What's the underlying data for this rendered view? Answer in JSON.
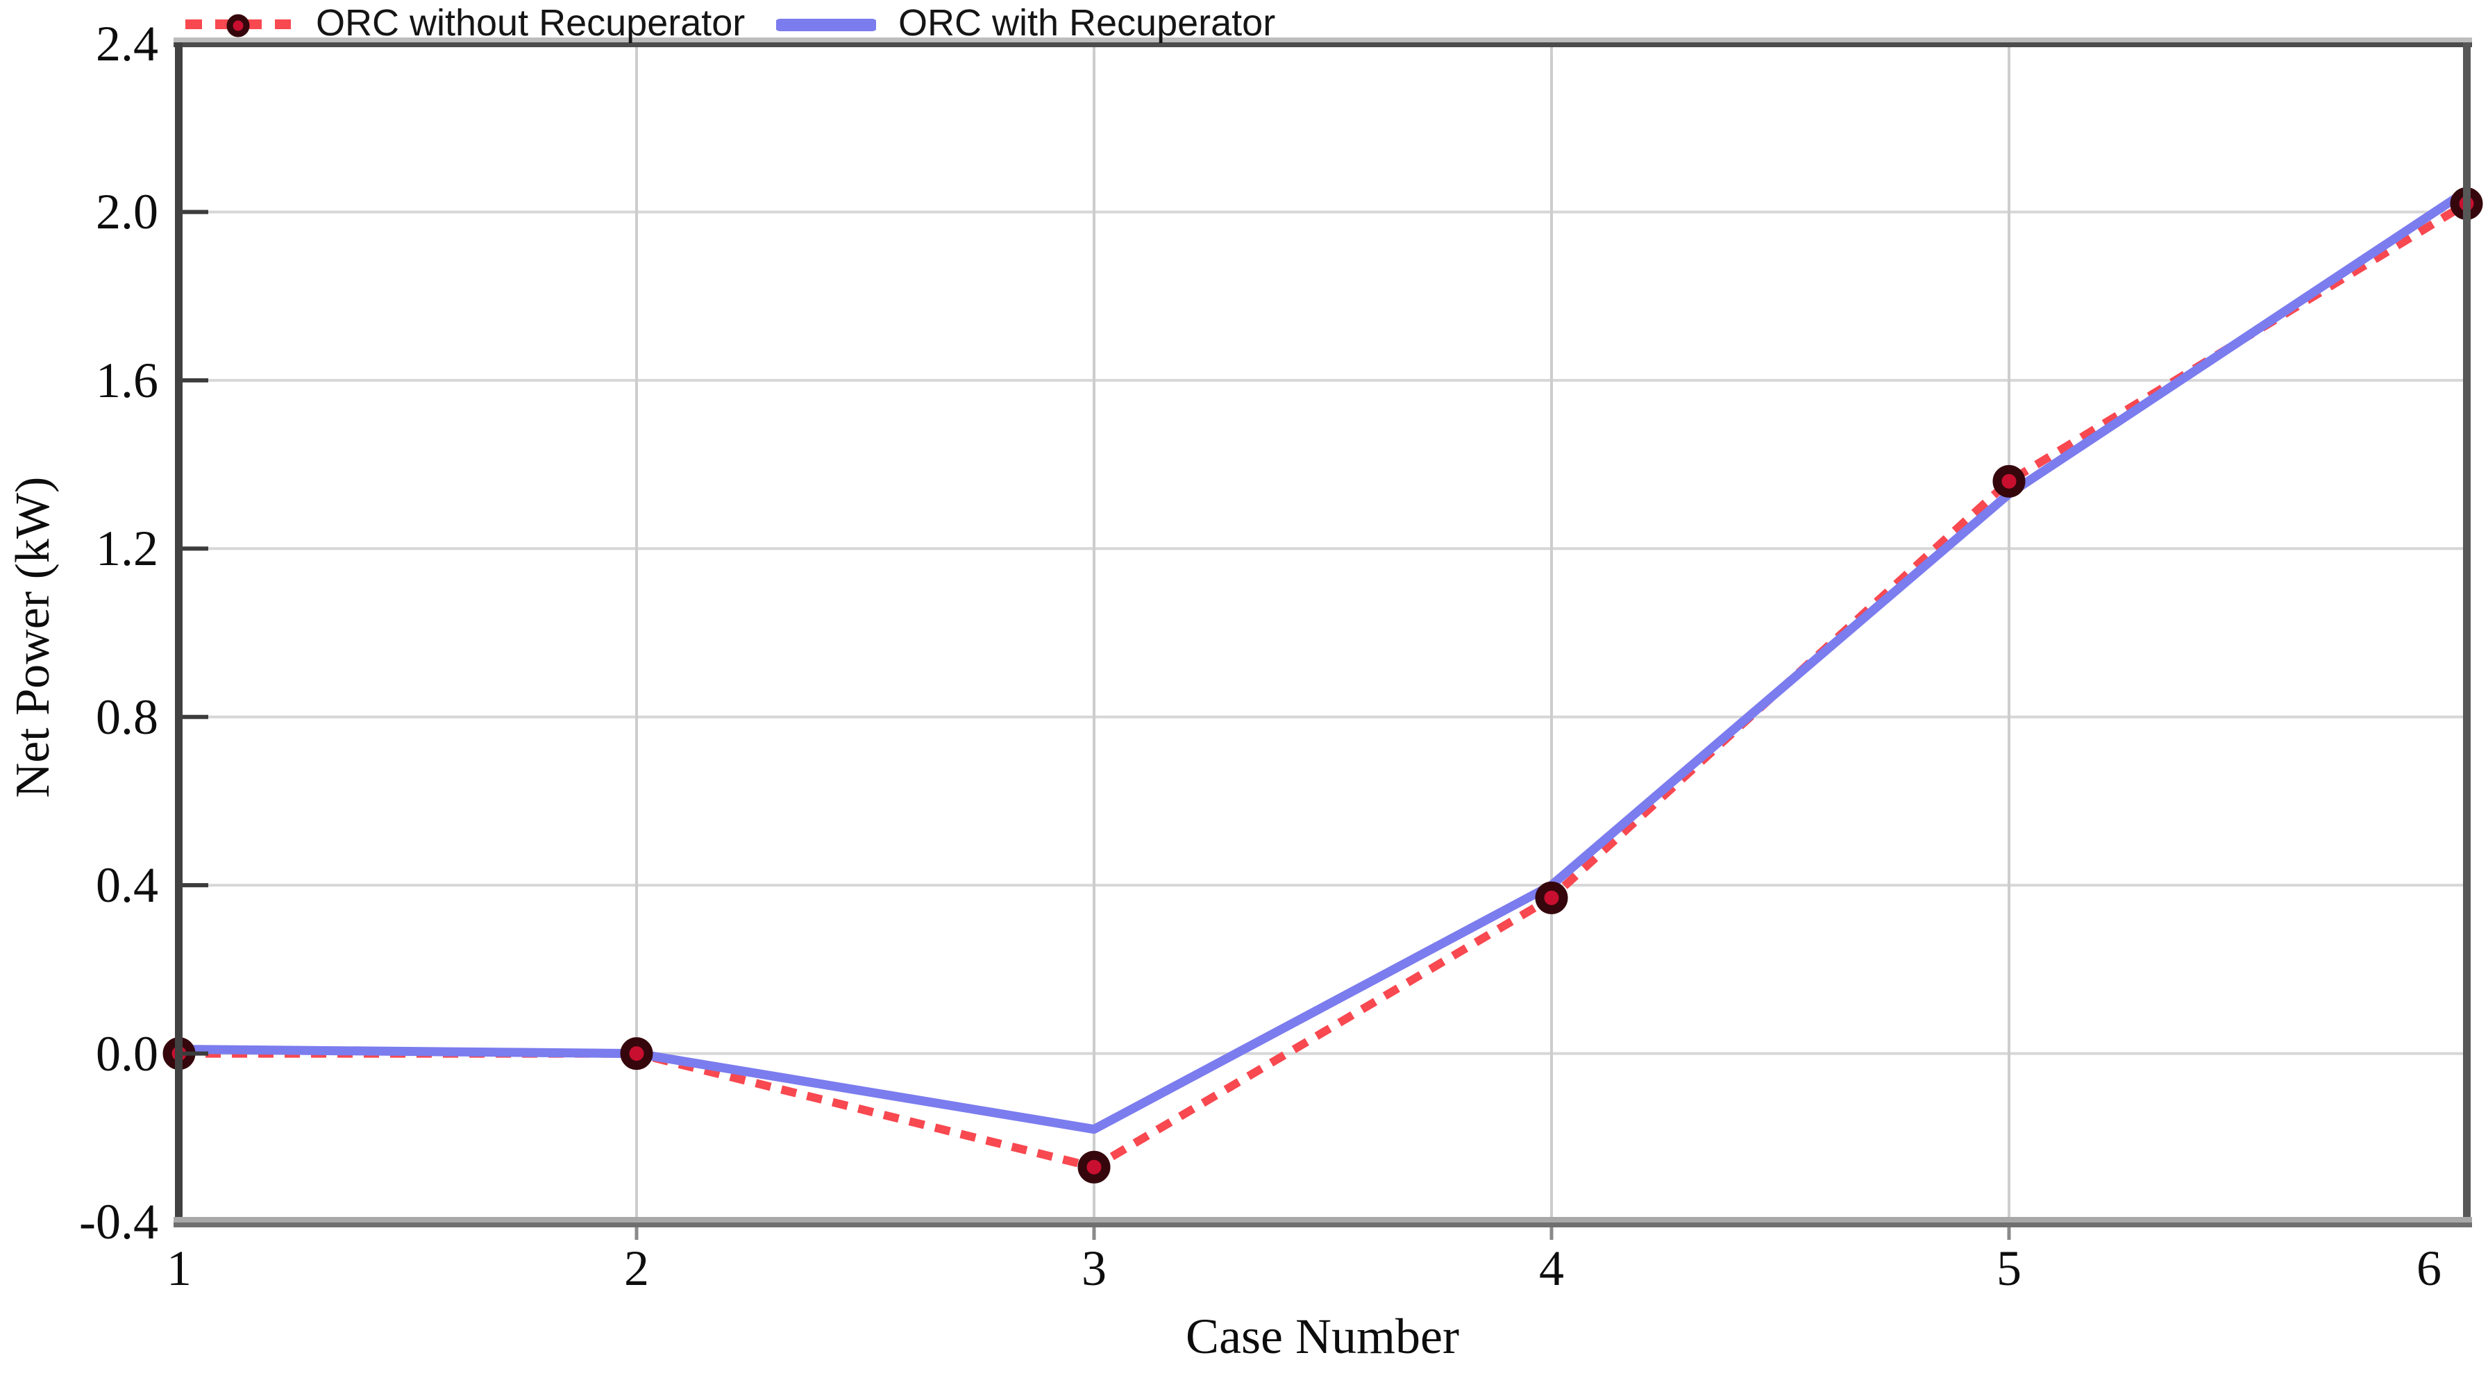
{
  "page": {
    "background": "#ffffff"
  },
  "chart_data": {
    "type": "line",
    "title": "",
    "xlabel": "Case Number",
    "ylabel": "Net Power (kW)",
    "x": [
      1,
      2,
      3,
      4,
      5,
      6
    ],
    "x_tick_labels": [
      "1",
      "2",
      "3",
      "4",
      "5",
      "6"
    ],
    "y_ticks": [
      2.4,
      2.0,
      1.6,
      1.2,
      0.8,
      0.4,
      0.0,
      -0.4
    ],
    "y_tick_labels": [
      "2.4",
      "2.0",
      "1.6",
      "1.2",
      "0.8",
      "0.4",
      "0.0",
      "-0.4"
    ],
    "xlim": [
      1,
      6
    ],
    "ylim": [
      -0.4,
      2.4
    ],
    "grid": true,
    "legend_position": "top-left",
    "series": [
      {
        "name": "ORC without Recuperator",
        "line_style": "dashed",
        "color": "#f84850",
        "marker": "circle",
        "marker_fill": "#c80f2f",
        "marker_ring": "#35070c",
        "values": [
          0.0,
          0.0,
          -0.27,
          0.37,
          1.36,
          2.02
        ]
      },
      {
        "name": "ORC with Recuperator",
        "line_style": "solid",
        "color": "#7b7cee",
        "marker": "none",
        "values": [
          0.01,
          0.0,
          -0.18,
          0.4,
          1.33,
          2.05
        ]
      }
    ],
    "colors": {
      "grid_h": "#d7d7d7",
      "grid_v": "#cdcdcd",
      "frame_top": "#4c4c4c",
      "frame_top_shadow": "#bdbdbd",
      "frame_left": "#414141",
      "frame_right": "#575757",
      "frame_bottom_light": "#a8a8a8",
      "frame_bottom_dark": "#6f6f6f",
      "y_tick_mark": "#3c3c3c",
      "x_tick_mark": "#8a8a8a",
      "text": "#0d0d0d"
    }
  }
}
